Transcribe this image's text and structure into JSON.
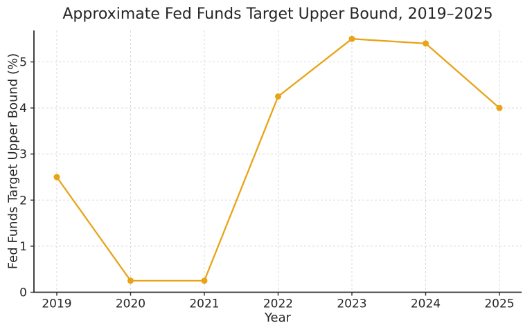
{
  "figure": {
    "background": "#ffffff"
  },
  "chart_data": {
    "type": "line",
    "title": "Approximate Fed Funds Target Upper Bound, 2019–2025",
    "xlabel": "Year",
    "ylabel": "Fed Funds Target Upper Bound (%)",
    "categories": [
      "2019",
      "2020",
      "2021",
      "2022",
      "2023",
      "2024",
      "2025"
    ],
    "series": [
      {
        "name": "Fed Funds Target Upper Bound",
        "values": [
          2.5,
          0.25,
          0.25,
          4.25,
          5.5,
          5.4,
          4.0
        ]
      }
    ],
    "yticks": [
      0,
      1,
      2,
      3,
      4,
      5
    ],
    "ylim": [
      0,
      5.68
    ],
    "grid": true,
    "grid_style": "dashed",
    "legend_position": "none",
    "marker": "circle",
    "line_color": "#E8A317",
    "grid_color": "#d8d8d8",
    "axis_color": "#2b2b2b",
    "tick_text_color": "#262626"
  }
}
